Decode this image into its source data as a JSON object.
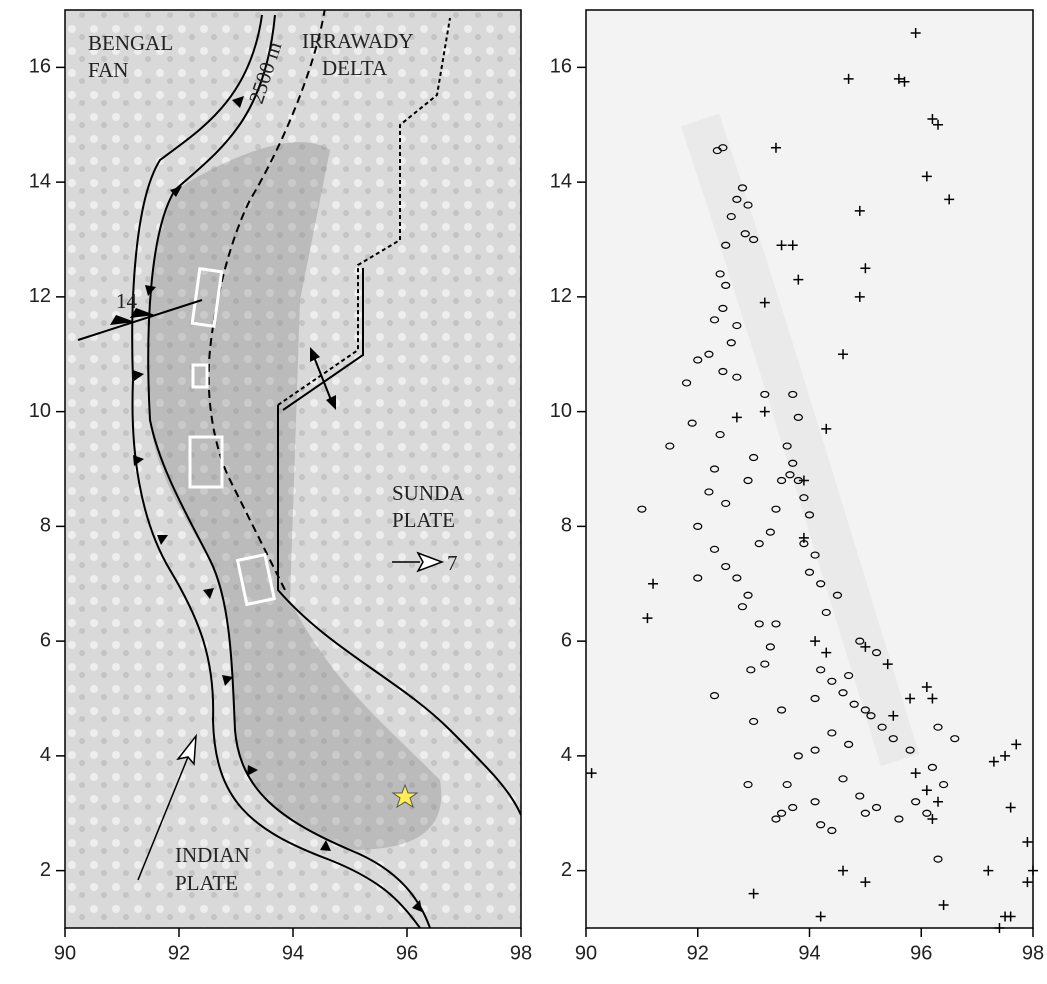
{
  "chart_data": [
    {
      "type": "map",
      "xlim": [
        90,
        98
      ],
      "ylim": [
        1,
        17
      ],
      "xticks": [
        90,
        92,
        94,
        96,
        98
      ],
      "yticks": [
        2,
        4,
        6,
        8,
        10,
        12,
        14,
        16
      ],
      "annotations": [
        "BENGAL",
        "FAN",
        "IRRAWADY",
        "DELTA",
        "2500 m",
        "14",
        "SUNDA",
        "PLATE",
        "7",
        "INDIAN",
        "PLATE"
      ]
    },
    {
      "type": "scatter",
      "xlim": [
        90,
        98
      ],
      "ylim": [
        1,
        17
      ],
      "xticks": [
        90,
        92,
        94,
        96,
        98
      ],
      "yticks": [
        2,
        4,
        6,
        8,
        10,
        12,
        14,
        16
      ],
      "series": [
        {
          "marker": "circle",
          "color": "#000000",
          "x": [
            92.35,
            92.45,
            92.7,
            92.8,
            92.6,
            92.9,
            92.5,
            92.85,
            93.0,
            92.4,
            92.5,
            92.45,
            92.3,
            92.6,
            92.2,
            92.45,
            92.7,
            92.0,
            91.8,
            92.7,
            93.7,
            93.8,
            93.6,
            93.7,
            93.8,
            93.5,
            93.9,
            94.0,
            93.65,
            93.4,
            92.3,
            92.2,
            92.5,
            92.0,
            92.3,
            92.5,
            92.7,
            92.9,
            92.8,
            93.1,
            93.3,
            93.2,
            92.95,
            93.4,
            93.9,
            94.1,
            94.2,
            94.5,
            94.3,
            94.0,
            94.2,
            94.4,
            94.6,
            94.7,
            94.1,
            94.8,
            95.0,
            95.1,
            95.3,
            95.5,
            94.7,
            94.4,
            94.1,
            93.8,
            93.6,
            93.7,
            93.5,
            94.1,
            94.2,
            94.4,
            94.6,
            94.9,
            95.0,
            95.2,
            95.6,
            95.9,
            96.1,
            96.4,
            96.2,
            95.8,
            96.3,
            96.6,
            92.3,
            93.4,
            92.9,
            93.0,
            93.5,
            96.3,
            94.9,
            95.2,
            91.0,
            91.5,
            91.9,
            92.0,
            93.1,
            93.3,
            93.0,
            92.9,
            93.2,
            92.4
          ],
          "y": [
            14.55,
            14.6,
            13.7,
            13.9,
            13.4,
            13.6,
            12.9,
            13.1,
            13.0,
            12.4,
            12.2,
            11.8,
            11.6,
            11.2,
            11.0,
            10.7,
            10.6,
            10.9,
            10.5,
            11.5,
            10.3,
            9.9,
            9.4,
            9.1,
            8.8,
            8.8,
            8.5,
            8.2,
            8.9,
            8.3,
            9.0,
            8.6,
            8.4,
            8.0,
            7.6,
            7.3,
            7.1,
            6.8,
            6.6,
            6.3,
            5.9,
            5.6,
            5.5,
            6.3,
            7.7,
            7.5,
            7.0,
            6.8,
            6.5,
            7.2,
            5.5,
            5.3,
            5.1,
            5.4,
            5.0,
            4.9,
            4.8,
            4.7,
            4.5,
            4.3,
            4.2,
            4.4,
            4.1,
            4.0,
            3.5,
            3.1,
            3.0,
            3.2,
            2.8,
            2.7,
            3.6,
            3.3,
            3.0,
            3.1,
            2.9,
            3.2,
            3.0,
            3.5,
            3.8,
            4.1,
            4.5,
            4.3,
            5.05,
            2.9,
            3.5,
            4.6,
            4.8,
            2.2,
            6.0,
            5.8,
            8.3,
            9.4,
            9.8,
            7.1,
            7.7,
            7.9,
            9.2,
            8.8,
            10.3,
            9.6
          ]
        },
        {
          "marker": "cross",
          "color": "#000000",
          "x": [
            95.9,
            95.6,
            95.7,
            94.7,
            96.2,
            96.3,
            96.1,
            96.5,
            93.4,
            93.5,
            95.0,
            94.9,
            94.6,
            93.2,
            93.8,
            92.7,
            93.2,
            94.3,
            93.9,
            93.9,
            94.1,
            94.3,
            95.0,
            95.4,
            96.1,
            95.8,
            96.2,
            95.5,
            95.9,
            96.1,
            96.3,
            96.2,
            97.3,
            97.5,
            97.7,
            97.6,
            97.9,
            97.2,
            98.0,
            97.9,
            94.2,
            94.6,
            95.0,
            96.4,
            97.5,
            97.4,
            97.6,
            91.2,
            91.1,
            90.1,
            93.0,
            93.7,
            94.9
          ],
          "y": [
            16.6,
            15.8,
            15.75,
            15.8,
            15.1,
            15.0,
            14.1,
            13.7,
            14.6,
            12.9,
            12.5,
            12.0,
            11.0,
            11.9,
            12.3,
            9.9,
            10.0,
            9.7,
            8.8,
            7.8,
            6.0,
            5.8,
            5.9,
            5.6,
            5.2,
            5.0,
            5.0,
            4.7,
            3.7,
            3.4,
            3.2,
            2.9,
            3.9,
            4.0,
            4.2,
            3.1,
            2.5,
            2.0,
            2.0,
            1.8,
            1.2,
            2.0,
            1.8,
            1.4,
            1.2,
            1.0,
            1.2,
            7.0,
            6.4,
            3.7,
            1.6,
            12.9,
            13.5
          ]
        }
      ]
    }
  ]
}
